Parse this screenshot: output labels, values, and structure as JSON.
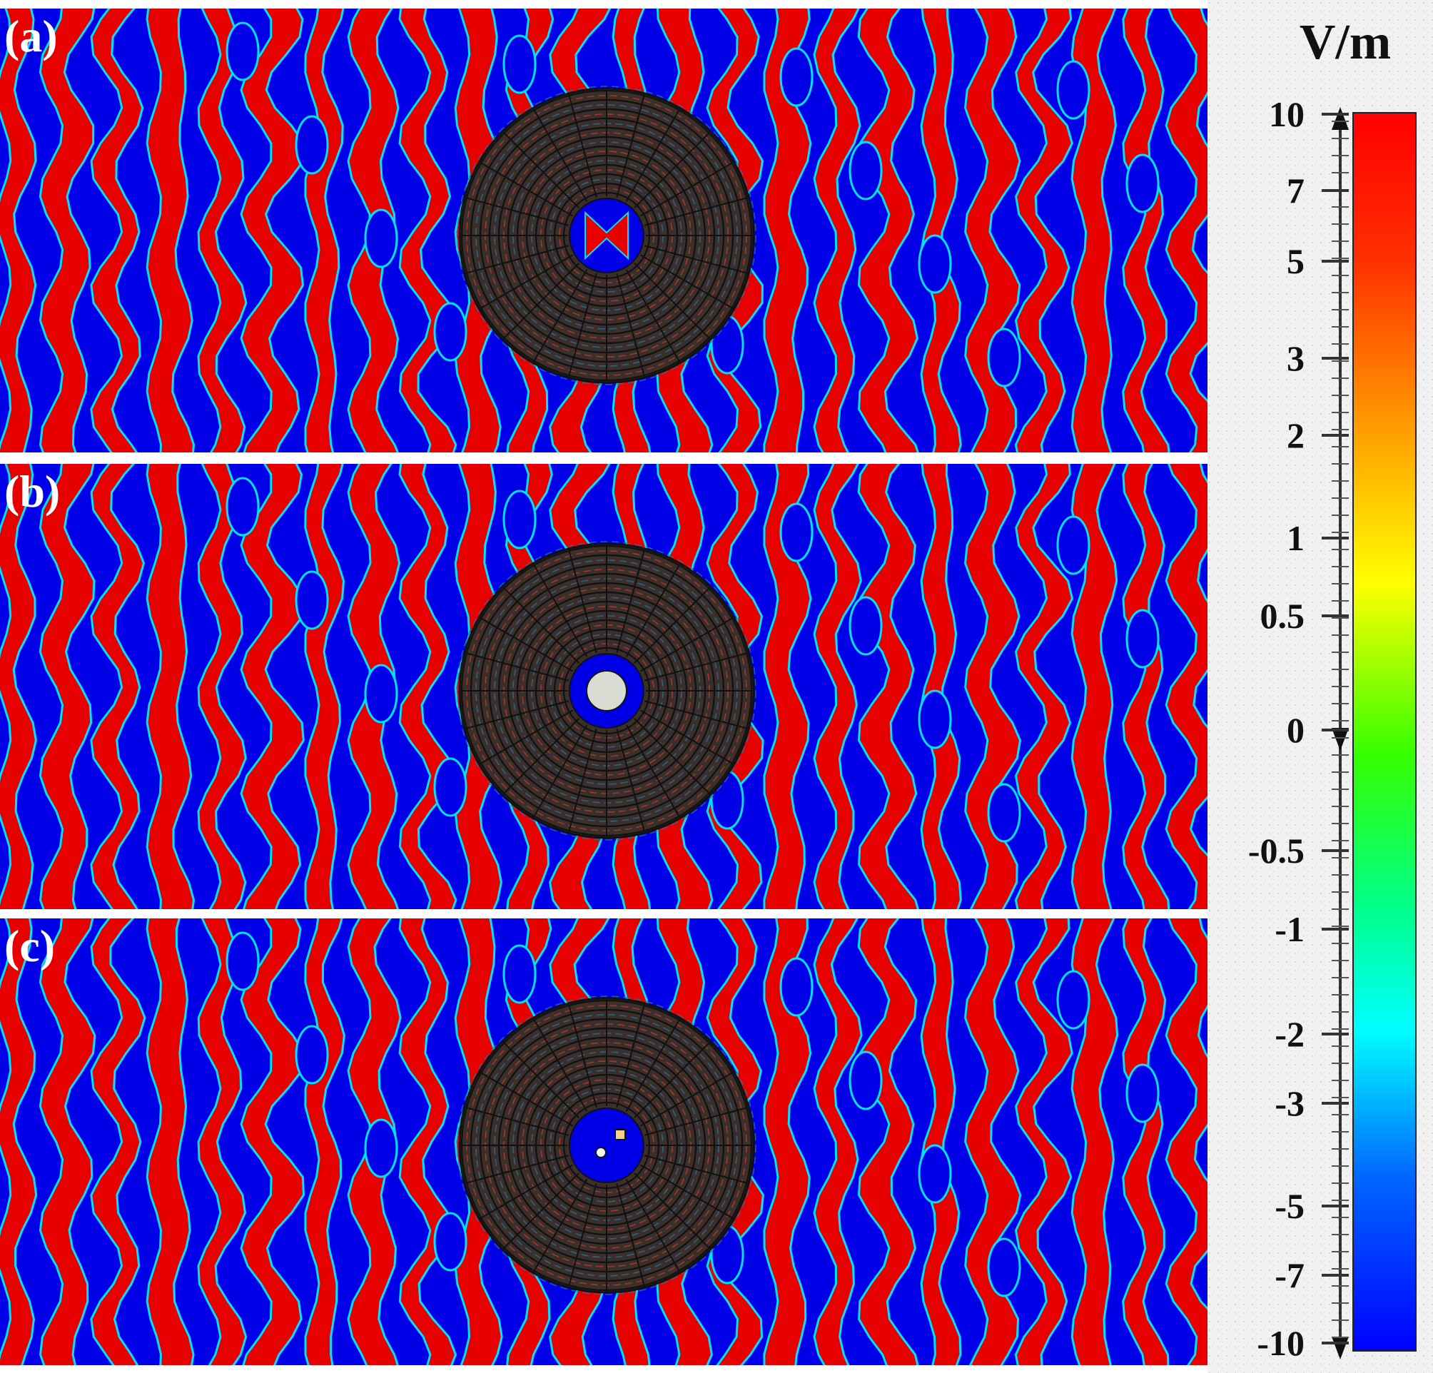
{
  "figure": {
    "panels": [
      {
        "label": "(a)",
        "center_marker": "cross"
      },
      {
        "label": "(b)",
        "center_marker": "disk"
      },
      {
        "label": "(c)",
        "center_marker": "small-particles"
      }
    ],
    "colorbar": {
      "unit": "V/m",
      "ticks": [
        "10",
        "7",
        "5",
        "3",
        "2",
        "1",
        "0.5",
        "0",
        "-0.5",
        "-1",
        "-2",
        "-3",
        "-5",
        "-7",
        "-10"
      ],
      "colors": [
        "#ff0000",
        "#ff7a00",
        "#ffff00",
        "#00ff00",
        "#00ffff",
        "#0000ff"
      ]
    },
    "field_colors": {
      "positive": "#e60000",
      "negative": "#0000e6",
      "transition": "#00e0ff"
    }
  }
}
